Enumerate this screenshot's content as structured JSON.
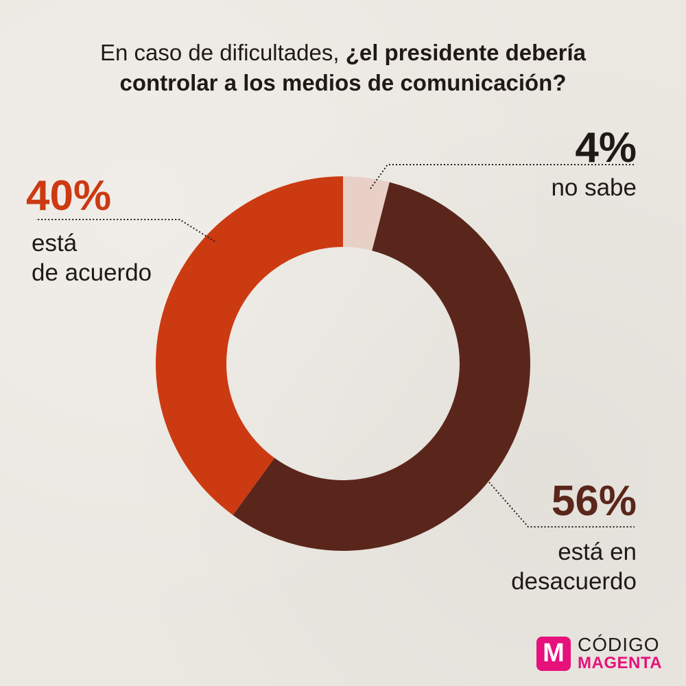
{
  "title": {
    "normal": "En caso de dificultades, ",
    "bold_line1": "¿el presidente debería",
    "bold_line2": "controlar a los medios de comunicación?"
  },
  "chart_data": {
    "type": "pie",
    "donut": true,
    "categories": [
      "no sabe",
      "está en desacuerdo",
      "está de acuerdo"
    ],
    "values": [
      4,
      56,
      40
    ],
    "value_labels": [
      "4%",
      "56%",
      "40%"
    ],
    "colors": [
      "#e8d0c6",
      "#5a261b",
      "#cc3a12"
    ],
    "label_lines": {
      "no sabe": [
        "no sabe"
      ],
      "está en desacuerdo": [
        "está en",
        "desacuerdo"
      ],
      "está de acuerdo": [
        "está",
        "de acuerdo"
      ]
    }
  },
  "logo": {
    "mark": "M",
    "line1": "CÓDIGO",
    "line2": "MAGENTA"
  }
}
